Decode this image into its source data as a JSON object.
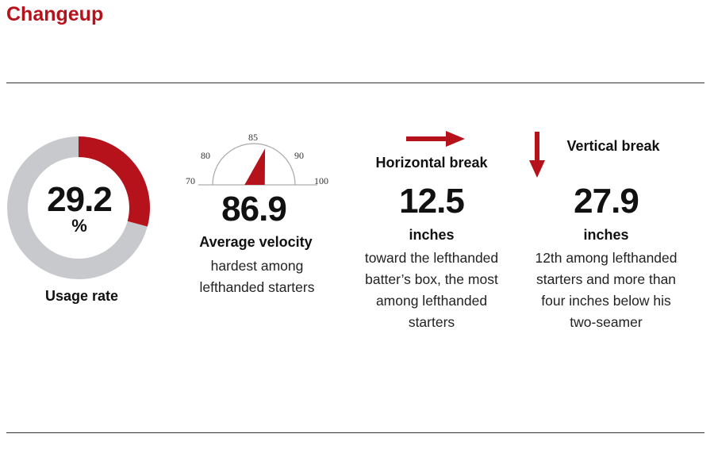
{
  "title": "Changeup",
  "colors": {
    "accent": "#b5121b",
    "track": "#c8c9cc"
  },
  "usage": {
    "value": "29.2",
    "unit": "%",
    "fraction": 0.292,
    "label": "Usage rate"
  },
  "velocity": {
    "value": "86.9",
    "numeric": 86.9,
    "ticks": [
      "70",
      "80",
      "85",
      "90",
      "100"
    ],
    "label": "Average velocity",
    "desc": "hardest among lefthanded starters"
  },
  "horizontal": {
    "label": "Horizontal break",
    "value": "12.5",
    "unit": "inches",
    "desc": "toward the lefthanded batter’s box, the most among lefthanded starters",
    "icon": "arrow-right-icon"
  },
  "vertical": {
    "label": "Vertical break",
    "value": "27.9",
    "unit": "inches",
    "desc": "12th among lefthanded starters and more than four inches below his two-seamer",
    "icon": "arrow-down-icon"
  }
}
